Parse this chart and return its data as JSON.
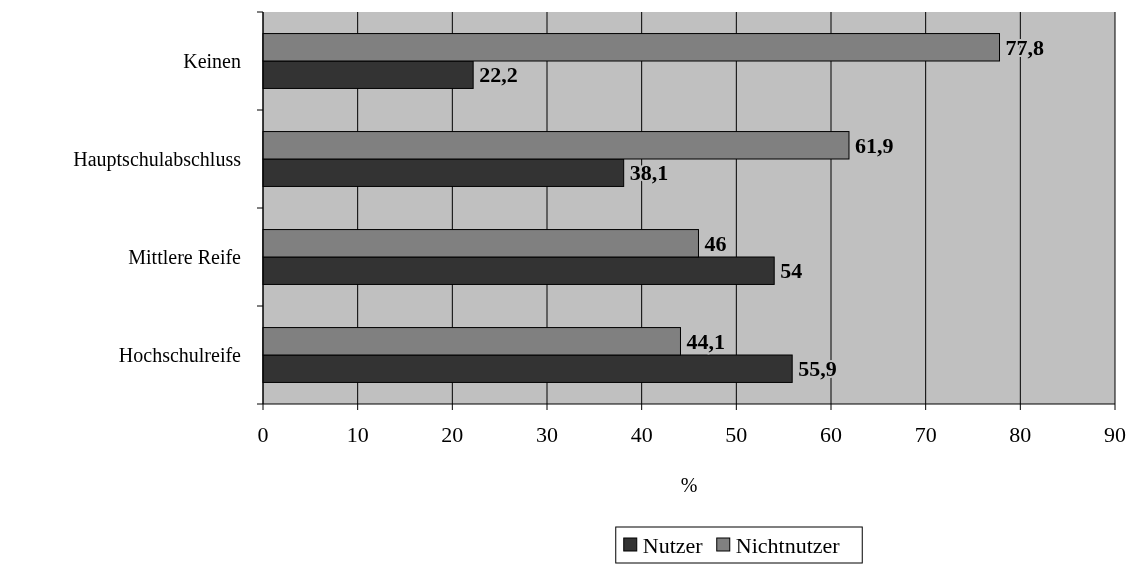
{
  "chart_data": {
    "type": "bar",
    "orientation": "horizontal",
    "xlabel": "%",
    "categories": [
      "Keinen",
      "Hauptschulabschluss",
      "Mittlere Reife",
      "Hochschulreife"
    ],
    "series": [
      {
        "name": "Nutzer",
        "color": "#333333",
        "values": [
          22.2,
          38.1,
          54,
          55.9
        ],
        "value_labels": [
          "22,2",
          "38,1",
          "54",
          "55,9"
        ]
      },
      {
        "name": "Nichtnutzer",
        "color": "#808080",
        "values": [
          77.8,
          61.9,
          46,
          44.1
        ],
        "value_labels": [
          "77,8",
          "61,9",
          "46",
          "44,1"
        ]
      }
    ],
    "xlim": [
      0,
      90
    ],
    "xticks": [
      0,
      10,
      20,
      30,
      40,
      50,
      60,
      70,
      80,
      90
    ],
    "grid": "x",
    "legend": "bottom"
  }
}
